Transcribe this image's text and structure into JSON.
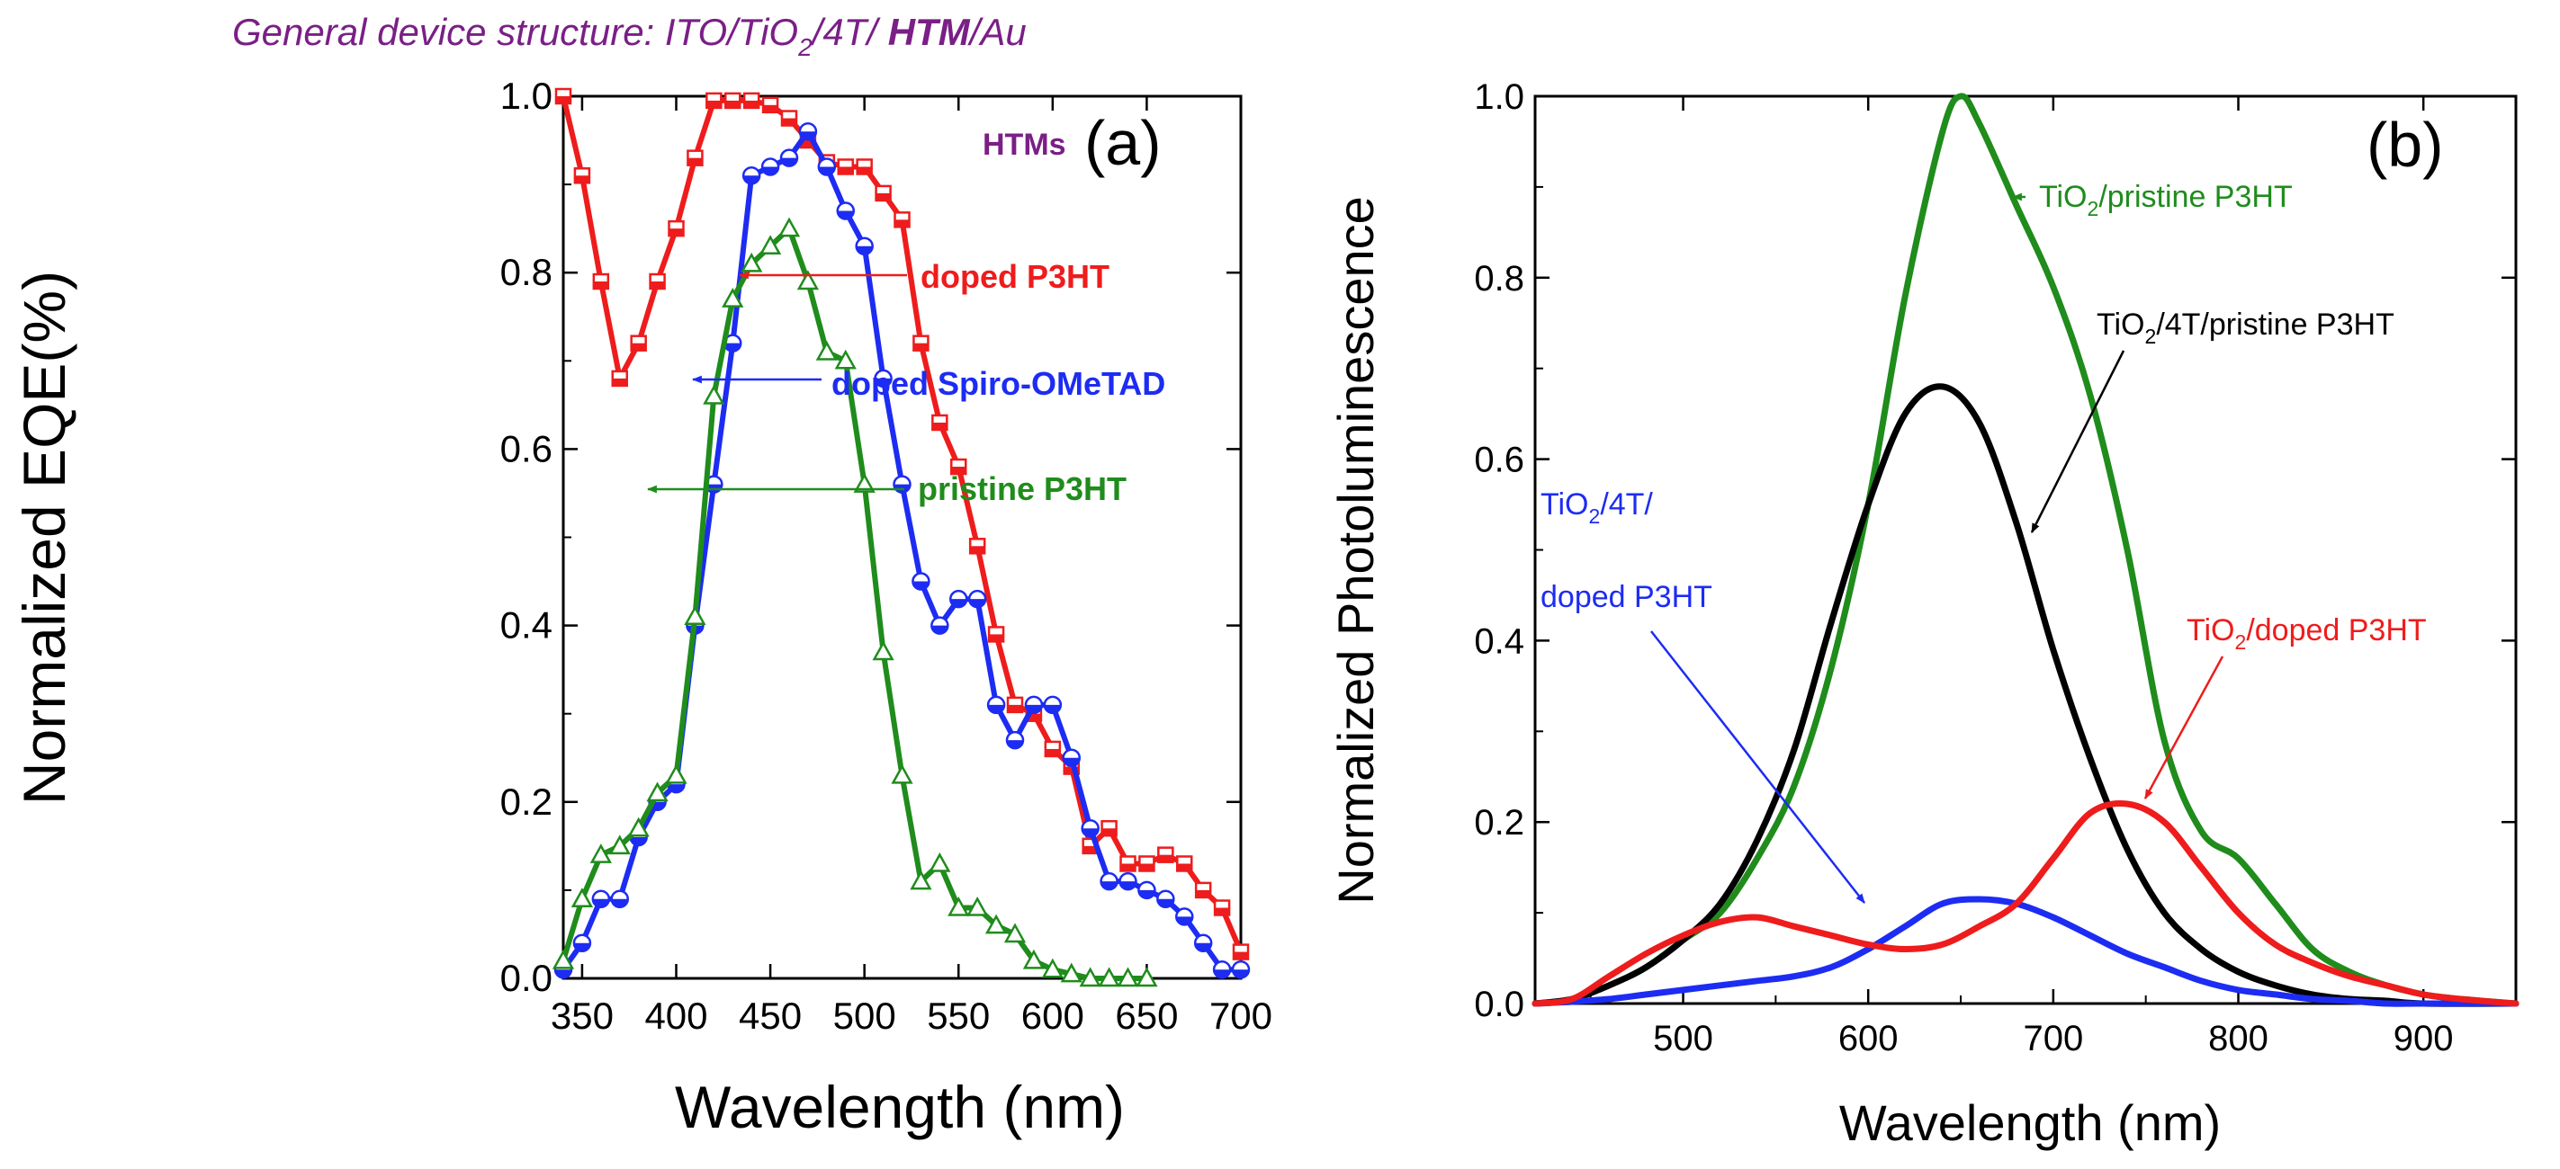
{
  "header": {
    "pre": "General device structure: ITO/TiO",
    "sub": "2",
    "mid": "/4T/ ",
    "bold": "HTM",
    "post": "/Au"
  },
  "colors": {
    "red": "#ee1c1c",
    "blue": "#1d2cf2",
    "green": "#1f8c1c",
    "black": "#000000",
    "purple": "#7a1f86"
  },
  "chart_data": [
    {
      "type": "line",
      "panel_label": "(a)",
      "legend_title": "HTMs",
      "xlabel": "Wavelength (nm)",
      "ylabel": "Normalized EQE(%)",
      "xlim": [
        340,
        700
      ],
      "ylim": [
        0,
        1.0
      ],
      "xticks": [
        "350",
        "400",
        "450",
        "500",
        "550",
        "600",
        "650",
        "700"
      ],
      "yticks": [
        "0.0",
        "0.2",
        "0.4",
        "0.6",
        "0.8",
        "1.0"
      ],
      "series": [
        {
          "name": "doped P3HT",
          "marker": "square",
          "x": [
            340,
            350,
            360,
            370,
            380,
            390,
            400,
            410,
            420,
            430,
            440,
            450,
            460,
            470,
            480,
            490,
            500,
            510,
            520,
            530,
            540,
            550,
            560,
            570,
            580,
            590,
            600,
            610,
            620,
            630,
            640,
            650,
            660,
            670,
            680,
            690,
            700
          ],
          "values": [
            1.0,
            0.91,
            0.79,
            0.68,
            0.72,
            0.79,
            0.85,
            0.93,
            0.995,
            0.995,
            0.995,
            0.99,
            0.975,
            0.95,
            0.925,
            0.92,
            0.92,
            0.89,
            0.86,
            0.72,
            0.63,
            0.58,
            0.49,
            0.39,
            0.31,
            0.3,
            0.26,
            0.24,
            0.15,
            0.17,
            0.13,
            0.13,
            0.14,
            0.13,
            0.1,
            0.08,
            0.03
          ]
        },
        {
          "name": "doped Spiro-OMeTAD",
          "marker": "circle",
          "x": [
            340,
            350,
            360,
            370,
            380,
            390,
            400,
            410,
            420,
            430,
            440,
            450,
            460,
            470,
            480,
            490,
            500,
            510,
            520,
            530,
            540,
            550,
            560,
            570,
            580,
            590,
            600,
            610,
            620,
            630,
            640,
            650,
            660,
            670,
            680,
            690,
            700
          ],
          "values": [
            0.01,
            0.04,
            0.09,
            0.09,
            0.16,
            0.2,
            0.22,
            0.4,
            0.56,
            0.72,
            0.91,
            0.92,
            0.93,
            0.96,
            0.92,
            0.87,
            0.83,
            0.68,
            0.56,
            0.45,
            0.4,
            0.43,
            0.43,
            0.31,
            0.27,
            0.31,
            0.31,
            0.25,
            0.17,
            0.11,
            0.11,
            0.1,
            0.09,
            0.07,
            0.04,
            0.01,
            0.01
          ]
        },
        {
          "name": "pristine P3HT",
          "marker": "triangle",
          "x": [
            340,
            350,
            360,
            370,
            380,
            390,
            400,
            410,
            420,
            430,
            440,
            450,
            460,
            470,
            480,
            490,
            500,
            510,
            520,
            530,
            540,
            550,
            560,
            570,
            580,
            590,
            600,
            610,
            620,
            630,
            640,
            650
          ],
          "values": [
            0.02,
            0.09,
            0.14,
            0.15,
            0.17,
            0.21,
            0.23,
            0.41,
            0.66,
            0.77,
            0.81,
            0.83,
            0.85,
            0.79,
            0.71,
            0.7,
            0.56,
            0.37,
            0.23,
            0.11,
            0.13,
            0.08,
            0.08,
            0.06,
            0.05,
            0.02,
            0.01,
            0.005,
            0.0,
            0.0,
            0.0,
            0.0
          ]
        }
      ]
    },
    {
      "type": "line",
      "panel_label": "(b)",
      "xlabel": "Wavelength (nm)",
      "ylabel": "Normalized Photoluminescence",
      "xlim": [
        420,
        950
      ],
      "ylim": [
        0,
        1.0
      ],
      "xticks": [
        "500",
        "600",
        "700",
        "800",
        "900"
      ],
      "yticks": [
        "0.0",
        "0.2",
        "0.4",
        "0.6",
        "0.8",
        "1.0"
      ],
      "series": [
        {
          "name": "TiO2/pristine P3HT",
          "x": [
            420,
            440,
            460,
            480,
            500,
            520,
            540,
            560,
            580,
            600,
            620,
            640,
            650,
            660,
            680,
            700,
            720,
            740,
            760,
            780,
            800,
            820,
            840,
            860,
            880,
            900,
            920,
            950
          ],
          "values": [
            0.0,
            0.005,
            0.02,
            0.04,
            0.07,
            0.1,
            0.16,
            0.24,
            0.37,
            0.55,
            0.78,
            0.96,
            1.0,
            0.97,
            0.88,
            0.79,
            0.67,
            0.5,
            0.29,
            0.19,
            0.16,
            0.11,
            0.06,
            0.035,
            0.02,
            0.01,
            0.005,
            0.0
          ]
        },
        {
          "name": "TiO2/4T/pristine P3HT",
          "x": [
            420,
            440,
            460,
            480,
            500,
            520,
            540,
            560,
            580,
            600,
            620,
            640,
            660,
            680,
            700,
            720,
            740,
            760,
            780,
            800,
            820,
            840,
            860,
            880,
            900,
            950
          ],
          "values": [
            0.0,
            0.005,
            0.02,
            0.04,
            0.07,
            0.11,
            0.18,
            0.28,
            0.42,
            0.55,
            0.65,
            0.68,
            0.64,
            0.53,
            0.39,
            0.27,
            0.17,
            0.1,
            0.06,
            0.035,
            0.02,
            0.01,
            0.005,
            0.003,
            0.0,
            0.0
          ]
        },
        {
          "name": "TiO2/4T/ doped P3HT",
          "x": [
            420,
            440,
            460,
            480,
            500,
            520,
            540,
            560,
            580,
            600,
            620,
            640,
            660,
            680,
            700,
            720,
            740,
            760,
            780,
            800,
            820,
            840,
            860,
            880,
            900,
            950
          ],
          "values": [
            0.0,
            0.002,
            0.005,
            0.01,
            0.015,
            0.02,
            0.025,
            0.03,
            0.04,
            0.06,
            0.085,
            0.11,
            0.115,
            0.11,
            0.095,
            0.075,
            0.055,
            0.04,
            0.025,
            0.015,
            0.01,
            0.005,
            0.003,
            0.0,
            0.0,
            0.0
          ]
        },
        {
          "name": "TiO2/doped P3HT",
          "x": [
            420,
            440,
            460,
            480,
            500,
            520,
            540,
            560,
            580,
            600,
            620,
            640,
            660,
            680,
            700,
            720,
            740,
            760,
            780,
            800,
            820,
            840,
            860,
            880,
            900,
            920,
            950
          ],
          "values": [
            0.0,
            0.005,
            0.03,
            0.055,
            0.075,
            0.09,
            0.095,
            0.085,
            0.075,
            0.065,
            0.06,
            0.065,
            0.085,
            0.11,
            0.16,
            0.21,
            0.22,
            0.2,
            0.15,
            0.1,
            0.065,
            0.045,
            0.03,
            0.02,
            0.01,
            0.005,
            0.0
          ]
        }
      ]
    }
  ],
  "panel_a_labels": {
    "doped_p3ht": "doped P3HT",
    "spiro": "doped Spiro-OMeTAD",
    "pristine": "pristine P3HT"
  },
  "panel_b_labels": {
    "green_pre": "TiO",
    "green_sub": "2",
    "green_post": "/pristine P3HT",
    "black_pre": "TiO",
    "black_sub": "2",
    "black_post": "/4T/pristine P3HT",
    "blue_line1_pre": "TiO",
    "blue_line1_sub": "2",
    "blue_line1_post": "/4T/",
    "blue_line2": "doped P3HT",
    "red_pre": "TiO",
    "red_sub": "2",
    "red_post": "/doped P3HT"
  }
}
